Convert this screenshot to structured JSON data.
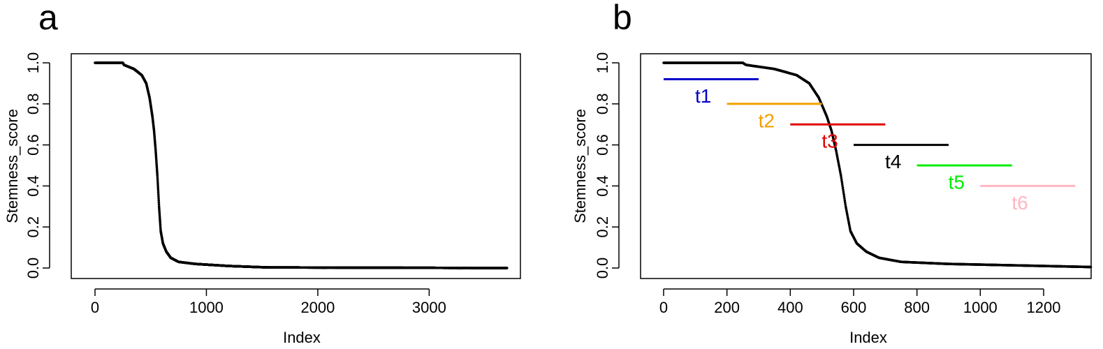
{
  "chart_data": [
    {
      "panel_label": "a",
      "type": "scatter",
      "xlabel": "Index",
      "ylabel": "Stemness_score",
      "xlim": [
        0,
        3700
      ],
      "ylim": [
        0,
        1.0
      ],
      "xticks": [
        0,
        1000,
        2000,
        3000
      ],
      "yticks": [
        0.0,
        0.2,
        0.4,
        0.6,
        0.8,
        1.0
      ],
      "xtick_labels": [
        "0",
        "1000",
        "2000",
        "3000"
      ],
      "ytick_labels": [
        "0.0",
        "0.2",
        "0.4",
        "0.6",
        "0.8",
        "1.0"
      ],
      "n_points": 3700,
      "curve_knots": [
        [
          0,
          1.0
        ],
        [
          250,
          1.0
        ],
        [
          260,
          0.99
        ],
        [
          350,
          0.97
        ],
        [
          420,
          0.94
        ],
        [
          460,
          0.9
        ],
        [
          490,
          0.83
        ],
        [
          515,
          0.74
        ],
        [
          530,
          0.67
        ],
        [
          545,
          0.57
        ],
        [
          560,
          0.45
        ],
        [
          575,
          0.3
        ],
        [
          590,
          0.18
        ],
        [
          610,
          0.12
        ],
        [
          640,
          0.08
        ],
        [
          680,
          0.05
        ],
        [
          750,
          0.03
        ],
        [
          900,
          0.02
        ],
        [
          1200,
          0.01
        ],
        [
          1550,
          0.003
        ],
        [
          3700,
          0.0
        ]
      ],
      "marker_color": "#000000",
      "grid": false
    },
    {
      "panel_label": "b",
      "type": "scatter",
      "xlabel": "Index",
      "ylabel": "Stemness_score",
      "xlim": [
        0,
        1350
      ],
      "ylim": [
        0,
        1.0
      ],
      "xticks": [
        0,
        200,
        400,
        600,
        800,
        1000,
        1200
      ],
      "yticks": [
        0.0,
        0.2,
        0.4,
        0.6,
        0.8,
        1.0
      ],
      "xtick_labels": [
        "0",
        "200",
        "400",
        "600",
        "800",
        "1000",
        "1200"
      ],
      "ytick_labels": [
        "0.0",
        "0.2",
        "0.4",
        "0.6",
        "0.8",
        "1.0"
      ],
      "n_points": 1350,
      "curve_knots": [
        [
          0,
          1.0
        ],
        [
          250,
          1.0
        ],
        [
          260,
          0.99
        ],
        [
          350,
          0.97
        ],
        [
          420,
          0.94
        ],
        [
          460,
          0.9
        ],
        [
          490,
          0.83
        ],
        [
          515,
          0.74
        ],
        [
          530,
          0.67
        ],
        [
          545,
          0.57
        ],
        [
          560,
          0.45
        ],
        [
          575,
          0.3
        ],
        [
          590,
          0.18
        ],
        [
          610,
          0.12
        ],
        [
          640,
          0.08
        ],
        [
          680,
          0.05
        ],
        [
          750,
          0.03
        ],
        [
          900,
          0.02
        ],
        [
          1200,
          0.01
        ],
        [
          1350,
          0.005
        ]
      ],
      "marker_color": "#000000",
      "grid": false,
      "thresholds": [
        {
          "label": "t1",
          "color": "#0000cc",
          "x_start": 0,
          "x_end": 300,
          "y": 0.92,
          "label_x": 125,
          "label_y": 0.84
        },
        {
          "label": "t2",
          "color": "#f5a000",
          "x_start": 200,
          "x_end": 500,
          "y": 0.8,
          "label_x": 325,
          "label_y": 0.72
        },
        {
          "label": "t3",
          "color": "#e00000",
          "x_start": 400,
          "x_end": 700,
          "y": 0.7,
          "label_x": 525,
          "label_y": 0.62
        },
        {
          "label": "t4",
          "color": "#000000",
          "x_start": 600,
          "x_end": 900,
          "y": 0.6,
          "label_x": 725,
          "label_y": 0.52
        },
        {
          "label": "t5",
          "color": "#00ee00",
          "x_start": 800,
          "x_end": 1100,
          "y": 0.5,
          "label_x": 925,
          "label_y": 0.42
        },
        {
          "label": "t6",
          "color": "#ffb6c1",
          "x_start": 1000,
          "x_end": 1300,
          "y": 0.4,
          "label_x": 1125,
          "label_y": 0.32
        }
      ]
    }
  ]
}
